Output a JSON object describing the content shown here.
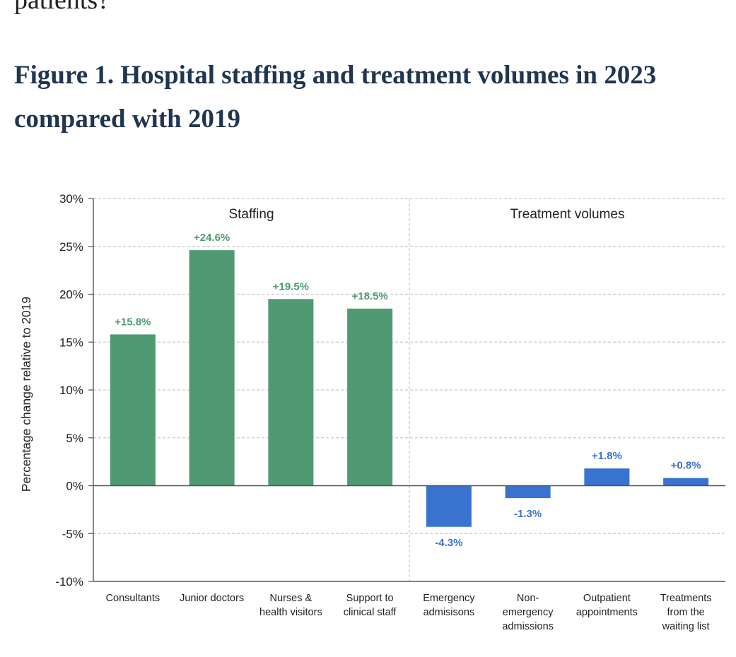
{
  "page": {
    "top_text": "patients?",
    "figure_title": "Figure 1. Hospital staffing and treatment volumes in 2023 compared with 2019"
  },
  "chart_data": {
    "type": "bar",
    "title": "Figure 1. Hospital staffing and treatment volumes in 2023 compared with 2019",
    "xlabel": "",
    "ylabel": "Percentage change relative to 2019",
    "ylim": [
      -10,
      30
    ],
    "yticks": [
      30,
      25,
      20,
      15,
      10,
      5,
      0,
      -5,
      -10
    ],
    "ytick_labels": [
      "30%",
      "25%",
      "20%",
      "15%",
      "10%",
      "5%",
      "0%",
      "-5%",
      "-10%"
    ],
    "grid": true,
    "groups": [
      {
        "name": "Staffing",
        "color": "#4f9a73",
        "label_color": "#4f9a73",
        "categories": [
          [
            "Consultants"
          ],
          [
            "Junior doctors"
          ],
          [
            "Nurses &",
            "health visitors"
          ],
          [
            "Support to",
            "clinical staff"
          ]
        ],
        "values": [
          15.8,
          24.6,
          19.5,
          18.5
        ],
        "labels": [
          "+15.8%",
          "+24.6%",
          "+19.5%",
          "+18.5%"
        ]
      },
      {
        "name": "Treatment volumes",
        "color": "#3a73cf",
        "label_color": "#3a73cf",
        "categories": [
          [
            "Emergency",
            "admisisons"
          ],
          [
            "Non-",
            "emergency",
            "admissions"
          ],
          [
            "Outpatient",
            "appointments"
          ],
          [
            "Treatments",
            "from the",
            "waiting list"
          ]
        ],
        "values": [
          -4.3,
          -1.3,
          1.8,
          0.8
        ],
        "labels": [
          "-4.3%",
          "-1.3%",
          "+1.8%",
          "+0.8%"
        ]
      }
    ]
  }
}
